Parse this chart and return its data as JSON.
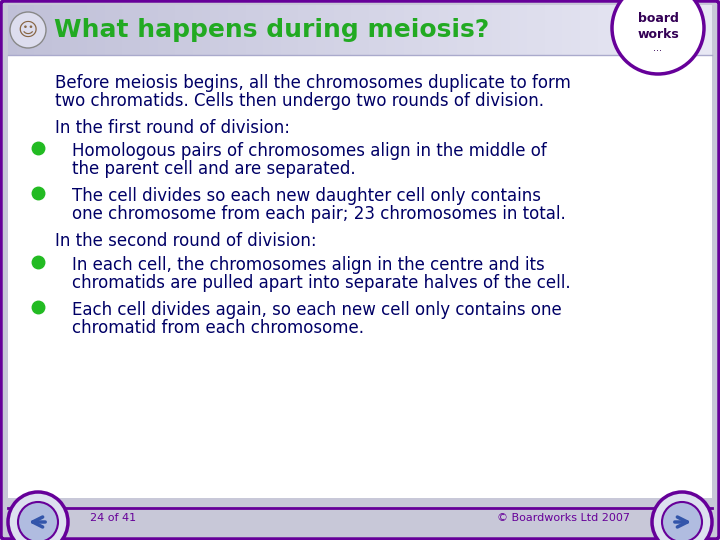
{
  "title": "What happens during meiosis?",
  "title_color": "#22aa22",
  "outer_bg": "#c8c8d8",
  "body_bg": "#ffffff",
  "header_bg_left": "#c8c8dc",
  "header_bg_right": "#e8e8f4",
  "border_color": "#660099",
  "text_color": "#000066",
  "bullet_color": "#22bb22",
  "footer_text_left": "24 of 41",
  "footer_text_right": "© Boardworks Ltd 2007",
  "footer_line_color": "#660099",
  "paragraph1_line1": "Before meiosis begins, all the chromosomes duplicate to form",
  "paragraph1_line2": "two chromatids. Cells then undergo two rounds of division.",
  "heading1": "In the first round of division:",
  "bullet1_line1": "Homologous pairs of chromosomes align in the middle of",
  "bullet1_line2": "the parent cell and are separated.",
  "bullet2_line1": "The cell divides so each new daughter cell only contains",
  "bullet2_line2": "one chromosome from each pair; 23 chromosomes in total.",
  "heading2": "In the second round of division:",
  "bullet3_line1": "In each cell, the chromosomes align in the centre and its",
  "bullet3_line2": "chromatids are pulled apart into separate halves of the cell.",
  "bullet4_line1": "Each cell divides again, so each new cell only contains one",
  "bullet4_line2": "chromatid from each chromosome.",
  "font_size_title": 18,
  "font_size_body": 12,
  "font_size_footer": 8,
  "logo_text1": "board",
  "logo_text2": "works",
  "logo_text3": "..."
}
